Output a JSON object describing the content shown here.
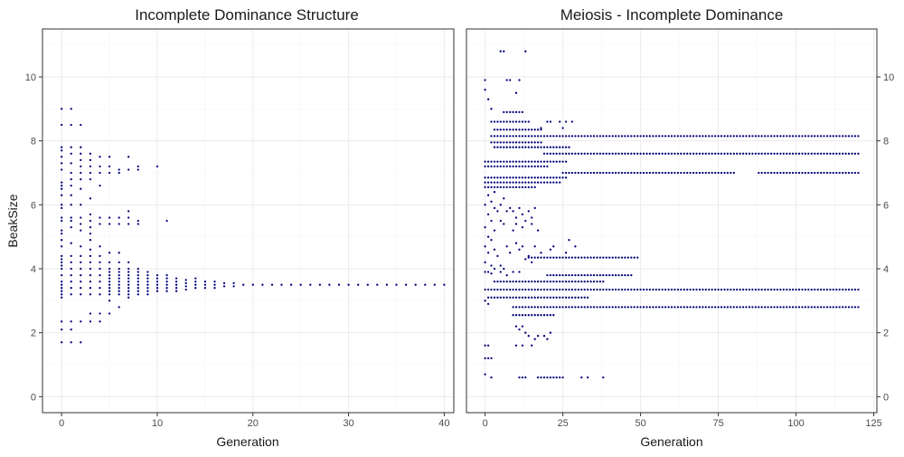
{
  "chart_data": [
    {
      "type": "scatter",
      "title": "Incomplete Dominance Structure",
      "xlabel": "Generation",
      "ylabel": "BeakSize",
      "xlim": [
        -2,
        41
      ],
      "ylim": [
        -0.5,
        11.5
      ],
      "xticks": [
        0,
        10,
        20,
        30,
        40
      ],
      "yticks": [
        0,
        2,
        4,
        6,
        8,
        10
      ],
      "y_axis_side": "left",
      "grid": true,
      "point_color": "#00007a",
      "columns": [
        {
          "x": 0,
          "y": [
            1.7,
            2.1,
            2.35,
            3.1,
            3.2,
            3.3,
            3.4,
            3.5,
            3.6,
            3.8,
            4.0,
            4.1,
            4.2,
            4.3,
            4.4,
            4.7,
            4.9,
            5.1,
            5.2,
            5.5,
            5.6,
            5.9,
            6.0,
            6.3,
            6.5,
            6.6,
            6.7,
            7.1,
            7.3,
            7.5,
            7.7,
            7.8,
            8.5,
            9.0
          ]
        },
        {
          "x": 1,
          "y": [
            1.7,
            2.1,
            2.35,
            3.2,
            3.4,
            3.6,
            3.8,
            4.0,
            4.2,
            4.4,
            4.8,
            5.3,
            5.5,
            5.6,
            6.0,
            6.3,
            6.6,
            6.8,
            7.0,
            7.3,
            7.6,
            7.8,
            8.5,
            9.0
          ]
        },
        {
          "x": 2,
          "y": [
            1.7,
            2.35,
            3.2,
            3.4,
            3.6,
            3.8,
            4.0,
            4.2,
            4.4,
            4.7,
            5.2,
            5.4,
            5.6,
            6.0,
            6.5,
            6.8,
            7.0,
            7.2,
            7.4,
            7.6,
            7.8,
            8.5
          ]
        },
        {
          "x": 3,
          "y": [
            2.35,
            2.6,
            3.2,
            3.4,
            3.6,
            3.8,
            4.0,
            4.2,
            4.4,
            4.6,
            4.9,
            5.1,
            5.3,
            5.5,
            5.7,
            6.2,
            6.8,
            7.0,
            7.2,
            7.4,
            7.6
          ]
        },
        {
          "x": 4,
          "y": [
            2.35,
            2.6,
            3.2,
            3.4,
            3.6,
            3.8,
            4.0,
            4.2,
            4.4,
            4.7,
            5.4,
            5.6,
            6.6,
            7.0,
            7.2,
            7.5
          ]
        },
        {
          "x": 5,
          "y": [
            2.6,
            3.0,
            3.2,
            3.3,
            3.4,
            3.5,
            3.6,
            3.7,
            3.8,
            3.9,
            4.0,
            4.2,
            4.5,
            5.4,
            5.6,
            7.0,
            7.2,
            7.5
          ]
        },
        {
          "x": 6,
          "y": [
            2.8,
            3.2,
            3.3,
            3.4,
            3.5,
            3.6,
            3.7,
            3.8,
            3.9,
            4.0,
            4.2,
            4.5,
            5.4,
            5.6,
            7.0,
            7.1
          ]
        },
        {
          "x": 7,
          "y": [
            3.1,
            3.2,
            3.3,
            3.4,
            3.5,
            3.6,
            3.7,
            3.8,
            3.9,
            4.0,
            4.2,
            5.4,
            5.6,
            5.8,
            7.1,
            7.5
          ]
        },
        {
          "x": 8,
          "y": [
            3.2,
            3.3,
            3.4,
            3.5,
            3.6,
            3.7,
            3.8,
            3.9,
            4.0,
            5.4,
            5.5,
            7.1,
            7.2
          ]
        },
        {
          "x": 9,
          "y": [
            3.2,
            3.3,
            3.4,
            3.5,
            3.6,
            3.7,
            3.8,
            3.9
          ]
        },
        {
          "x": 10,
          "y": [
            3.3,
            3.4,
            3.5,
            3.6,
            3.7,
            3.8,
            7.2
          ]
        },
        {
          "x": 11,
          "y": [
            3.3,
            3.4,
            3.5,
            3.6,
            3.7,
            3.8,
            5.5
          ]
        },
        {
          "x": 12,
          "y": [
            3.3,
            3.4,
            3.5,
            3.6,
            3.7
          ]
        },
        {
          "x": 13,
          "y": [
            3.35,
            3.45,
            3.55,
            3.65
          ]
        },
        {
          "x": 14,
          "y": [
            3.4,
            3.5,
            3.6,
            3.7
          ]
        },
        {
          "x": 15,
          "y": [
            3.4,
            3.5,
            3.6
          ]
        },
        {
          "x": 16,
          "y": [
            3.4,
            3.5,
            3.6
          ]
        },
        {
          "x": 17,
          "y": [
            3.45,
            3.55
          ]
        },
        {
          "x": 18,
          "y": [
            3.45,
            3.55
          ]
        },
        {
          "x": 19,
          "y": [
            3.5
          ]
        },
        {
          "x": 20,
          "y": [
            3.5
          ]
        },
        {
          "x": 21,
          "y": [
            3.5
          ]
        },
        {
          "x": 22,
          "y": [
            3.5
          ]
        },
        {
          "x": 23,
          "y": [
            3.5
          ]
        },
        {
          "x": 24,
          "y": [
            3.5
          ]
        },
        {
          "x": 25,
          "y": [
            3.5
          ]
        },
        {
          "x": 26,
          "y": [
            3.5
          ]
        },
        {
          "x": 27,
          "y": [
            3.5
          ]
        },
        {
          "x": 28,
          "y": [
            3.5
          ]
        },
        {
          "x": 29,
          "y": [
            3.5
          ]
        },
        {
          "x": 30,
          "y": [
            3.5
          ]
        },
        {
          "x": 31,
          "y": [
            3.5
          ]
        },
        {
          "x": 32,
          "y": [
            3.5
          ]
        },
        {
          "x": 33,
          "y": [
            3.5
          ]
        },
        {
          "x": 34,
          "y": [
            3.5
          ]
        },
        {
          "x": 35,
          "y": [
            3.5
          ]
        },
        {
          "x": 36,
          "y": [
            3.5
          ]
        },
        {
          "x": 37,
          "y": [
            3.5
          ]
        },
        {
          "x": 38,
          "y": [
            3.5
          ]
        },
        {
          "x": 39,
          "y": [
            3.5
          ]
        },
        {
          "x": 40,
          "y": [
            3.5
          ]
        }
      ]
    },
    {
      "type": "scatter",
      "title": "Meiosis - Incomplete Dominance",
      "xlabel": "Generation",
      "ylabel": "",
      "xlim": [
        -6,
        126
      ],
      "ylim": [
        -0.5,
        11.5
      ],
      "xticks": [
        0,
        25,
        50,
        75,
        100,
        125
      ],
      "yticks": [
        0,
        2,
        4,
        6,
        8,
        10
      ],
      "y_axis_side": "right",
      "grid": true,
      "point_color": "#00007a",
      "bands": [
        {
          "y": 8.15,
          "x_from": 2,
          "x_to": 120
        },
        {
          "y": 7.6,
          "x_from": 19,
          "x_to": 120
        },
        {
          "y": 7.0,
          "x_from": 25,
          "x_to": 80
        },
        {
          "y": 7.0,
          "x_from": 88,
          "x_to": 120
        },
        {
          "y": 3.35,
          "x_from": 0,
          "x_to": 120
        },
        {
          "y": 2.8,
          "x_from": 9,
          "x_to": 120
        },
        {
          "y": 4.35,
          "x_from": 14,
          "x_to": 49
        },
        {
          "y": 3.8,
          "x_from": 20,
          "x_to": 47
        },
        {
          "y": 3.6,
          "x_from": 3,
          "x_to": 38
        },
        {
          "y": 3.1,
          "x_from": 1,
          "x_to": 33
        },
        {
          "y": 2.55,
          "x_from": 9,
          "x_to": 22
        },
        {
          "y": 7.95,
          "x_from": 2,
          "x_to": 18
        },
        {
          "y": 7.8,
          "x_from": 3,
          "x_to": 27
        },
        {
          "y": 7.35,
          "x_from": 0,
          "x_to": 26
        },
        {
          "y": 7.2,
          "x_from": 0,
          "x_to": 20
        },
        {
          "y": 6.85,
          "x_from": 0,
          "x_to": 26
        },
        {
          "y": 6.7,
          "x_from": 0,
          "x_to": 24
        },
        {
          "y": 6.55,
          "x_from": 0,
          "x_to": 16
        },
        {
          "y": 8.35,
          "x_from": 3,
          "x_to": 18
        },
        {
          "y": 8.6,
          "x_from": 2,
          "x_to": 14
        },
        {
          "y": 8.9,
          "x_from": 6,
          "x_to": 12
        },
        {
          "y": 0.6,
          "x_from": 17,
          "x_to": 25
        }
      ],
      "points": [
        [
          0,
          9.9
        ],
        [
          0,
          9.6
        ],
        [
          1,
          9.3
        ],
        [
          2,
          9.0
        ],
        [
          5,
          10.8
        ],
        [
          6,
          10.8
        ],
        [
          13,
          10.8
        ],
        [
          7,
          9.9
        ],
        [
          8,
          9.9
        ],
        [
          10,
          9.5
        ],
        [
          11,
          9.9
        ],
        [
          24,
          8.6
        ],
        [
          26,
          8.6
        ],
        [
          28,
          8.6
        ],
        [
          20,
          8.6
        ],
        [
          21,
          8.6
        ],
        [
          25,
          8.4
        ],
        [
          18,
          8.4
        ],
        [
          1,
          6.3
        ],
        [
          2,
          6.1
        ],
        [
          3,
          6.4
        ],
        [
          5,
          6.0
        ],
        [
          6,
          6.2
        ],
        [
          4,
          5.8
        ],
        [
          7,
          5.8
        ],
        [
          8,
          5.9
        ],
        [
          9,
          5.8
        ],
        [
          10,
          5.6
        ],
        [
          11,
          5.9
        ],
        [
          12,
          5.7
        ],
        [
          13,
          5.5
        ],
        [
          14,
          5.8
        ],
        [
          15,
          5.6
        ],
        [
          16,
          5.9
        ],
        [
          5,
          5.5
        ],
        [
          3,
          5.2
        ],
        [
          6,
          5.4
        ],
        [
          9,
          5.2
        ],
        [
          10,
          5.4
        ],
        [
          12,
          5.3
        ],
        [
          15,
          5.4
        ],
        [
          17,
          5.2
        ],
        [
          1,
          5.0
        ],
        [
          2,
          4.9
        ],
        [
          0,
          4.7
        ],
        [
          1,
          4.5
        ],
        [
          3,
          4.6
        ],
        [
          4,
          4.4
        ],
        [
          0,
          4.2
        ],
        [
          2,
          4.1
        ],
        [
          5,
          4.1
        ],
        [
          6,
          4.0
        ],
        [
          7,
          4.7
        ],
        [
          8,
          4.5
        ],
        [
          10,
          4.8
        ],
        [
          11,
          4.6
        ],
        [
          12,
          4.7
        ],
        [
          14,
          4.4
        ],
        [
          16,
          4.7
        ],
        [
          18,
          4.5
        ],
        [
          13,
          4.3
        ],
        [
          15,
          4.2
        ],
        [
          0,
          6.0
        ],
        [
          1,
          5.7
        ],
        [
          2,
          5.5
        ],
        [
          3,
          5.9
        ],
        [
          0,
          5.3
        ],
        [
          0,
          3.9
        ],
        [
          1,
          3.9
        ],
        [
          2,
          3.85
        ],
        [
          3,
          4.0
        ],
        [
          5,
          3.9
        ],
        [
          7,
          3.8
        ],
        [
          9,
          3.9
        ],
        [
          11,
          3.9
        ],
        [
          0,
          3.0
        ],
        [
          1,
          2.9
        ],
        [
          10,
          2.2
        ],
        [
          11,
          2.1
        ],
        [
          12,
          2.2
        ],
        [
          13,
          2.0
        ],
        [
          14,
          1.9
        ],
        [
          16,
          1.8
        ],
        [
          17,
          1.9
        ],
        [
          19,
          1.9
        ],
        [
          20,
          1.8
        ],
        [
          21,
          2.0
        ],
        [
          10,
          1.6
        ],
        [
          12,
          1.6
        ],
        [
          15,
          1.6
        ],
        [
          0,
          1.6
        ],
        [
          1,
          1.6
        ],
        [
          0,
          1.2
        ],
        [
          1,
          1.2
        ],
        [
          2,
          1.2
        ],
        [
          0,
          0.7
        ],
        [
          2,
          0.6
        ],
        [
          11,
          0.6
        ],
        [
          12,
          0.6
        ],
        [
          13,
          0.6
        ],
        [
          31,
          0.6
        ],
        [
          33,
          0.6
        ],
        [
          38,
          0.6
        ],
        [
          27,
          4.9
        ],
        [
          29,
          4.7
        ],
        [
          26,
          4.5
        ],
        [
          21,
          4.6
        ],
        [
          22,
          4.7
        ]
      ]
    }
  ]
}
